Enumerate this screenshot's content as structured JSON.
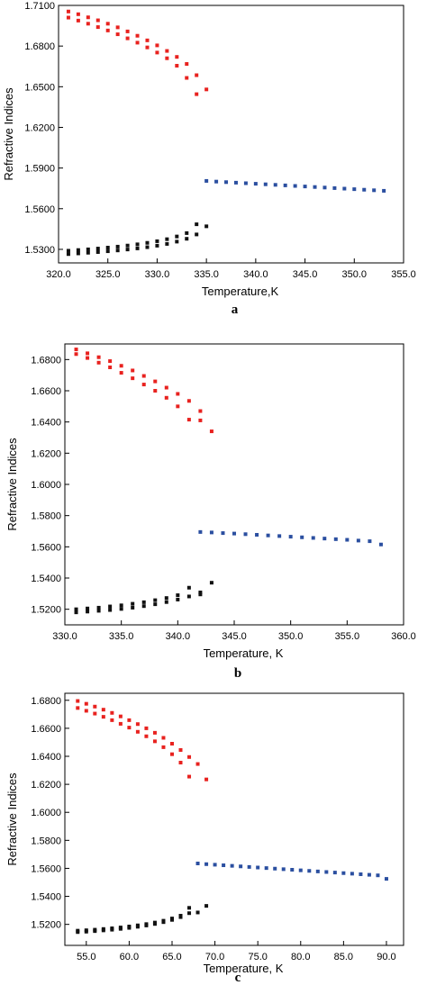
{
  "chart_data": [
    {
      "type": "scatter",
      "panel_label": "a",
      "xlabel": "Temperature,K",
      "ylabel": "Refractive Indices",
      "xlim": [
        320,
        355
      ],
      "ylim": [
        1.52,
        1.71
      ],
      "xticks": [
        320,
        325,
        330,
        335,
        340,
        345,
        350,
        355
      ],
      "xtick_labels": [
        "320.0",
        "325.0",
        "330.0",
        "335.0",
        "340.0",
        "345.0",
        "350.0",
        "355.0"
      ],
      "yticks": [
        1.53,
        1.56,
        1.59,
        1.62,
        1.65,
        1.68,
        1.71
      ],
      "ytick_labels": [
        "1.5300",
        "1.5600",
        "1.5900",
        "1.6200",
        "1.6500",
        "1.6800",
        "1.7100"
      ],
      "series": [
        {
          "color": "#e8221f",
          "x": [
            321.0,
            322.0,
            323.0,
            324.0,
            325.0,
            326.0,
            327.0,
            328.0,
            329.0,
            330.0,
            331.0,
            332.0,
            333.0,
            334.0,
            335.0
          ],
          "y": [
            1.7055,
            1.7035,
            1.7012,
            1.699,
            1.6965,
            1.6938,
            1.6908,
            1.6876,
            1.6842,
            1.6805,
            1.6764,
            1.672,
            1.6668,
            1.6585,
            1.648
          ]
        },
        {
          "color": "#e8221f",
          "x": [
            321.0,
            322.0,
            323.0,
            324.0,
            325.0,
            326.0,
            327.0,
            328.0,
            329.0,
            330.0,
            331.0,
            332.0,
            333.0,
            334.0
          ],
          "y": [
            1.701,
            1.6988,
            1.6965,
            1.694,
            1.6915,
            1.6887,
            1.6857,
            1.6825,
            1.679,
            1.6752,
            1.671,
            1.6655,
            1.6565,
            1.6445
          ]
        },
        {
          "color": "#111111",
          "x": [
            321.0,
            322.0,
            323.0,
            324.0,
            325.0,
            326.0,
            327.0,
            328.0,
            329.0,
            330.0,
            331.0,
            332.0,
            333.0,
            334.0,
            335.0
          ],
          "y": [
            1.529,
            1.5295,
            1.53,
            1.5306,
            1.5313,
            1.532,
            1.5328,
            1.5337,
            1.5348,
            1.536,
            1.5375,
            1.5395,
            1.542,
            1.5485,
            1.547
          ]
        },
        {
          "color": "#111111",
          "x": [
            321.0,
            322.0,
            323.0,
            324.0,
            325.0,
            326.0,
            327.0,
            328.0,
            329.0,
            330.0,
            331.0,
            332.0,
            333.0,
            334.0
          ],
          "y": [
            1.5265,
            1.527,
            1.5275,
            1.528,
            1.5286,
            1.5292,
            1.5299,
            1.5307,
            1.5316,
            1.5327,
            1.534,
            1.5357,
            1.5378,
            1.541
          ]
        },
        {
          "color": "#2b4fa0",
          "x": [
            335.0,
            336.0,
            337.0,
            338.0,
            339.0,
            340.0,
            341.0,
            342.0,
            343.0,
            344.0,
            345.0,
            346.0,
            347.0,
            348.0,
            349.0,
            350.0,
            351.0,
            352.0,
            353.0
          ],
          "y": [
            1.5805,
            1.58,
            1.5796,
            1.5792,
            1.5788,
            1.5784,
            1.578,
            1.5776,
            1.5772,
            1.5768,
            1.5764,
            1.576,
            1.5756,
            1.5752,
            1.5748,
            1.5744,
            1.574,
            1.5736,
            1.5732
          ]
        }
      ]
    },
    {
      "type": "scatter",
      "panel_label": "b",
      "xlabel": "Temperature, K",
      "ylabel": "Refractive Indices",
      "xlim": [
        330,
        360
      ],
      "ylim": [
        1.51,
        1.69
      ],
      "xticks": [
        330,
        335,
        340,
        345,
        350,
        355,
        360
      ],
      "xtick_labels": [
        "330.0",
        "335.0",
        "340.0",
        "345.0",
        "350.0",
        "355.0",
        "360.0"
      ],
      "yticks": [
        1.52,
        1.54,
        1.56,
        1.58,
        1.6,
        1.62,
        1.64,
        1.66,
        1.68
      ],
      "ytick_labels": [
        "1.5200",
        "1.5400",
        "1.5600",
        "1.5800",
        "1.6000",
        "1.6200",
        "1.6400",
        "1.6600",
        "1.6800"
      ],
      "series": [
        {
          "color": "#e8221f",
          "x": [
            331.0,
            332.0,
            333.0,
            334.0,
            335.0,
            336.0,
            337.0,
            338.0,
            339.0,
            340.0,
            341.0,
            342.0,
            343.0
          ],
          "y": [
            1.6865,
            1.684,
            1.6815,
            1.679,
            1.676,
            1.673,
            1.6695,
            1.666,
            1.662,
            1.658,
            1.6535,
            1.647,
            1.634
          ]
        },
        {
          "color": "#e8221f",
          "x": [
            331.0,
            332.0,
            333.0,
            334.0,
            335.0,
            336.0,
            337.0,
            338.0,
            339.0,
            340.0,
            341.0,
            342.0
          ],
          "y": [
            1.6835,
            1.681,
            1.678,
            1.675,
            1.6715,
            1.668,
            1.664,
            1.66,
            1.6555,
            1.65,
            1.6415,
            1.641
          ]
        },
        {
          "color": "#111111",
          "x": [
            331.0,
            332.0,
            333.0,
            334.0,
            335.0,
            336.0,
            337.0,
            338.0,
            339.0,
            340.0,
            341.0,
            342.0,
            343.0
          ],
          "y": [
            1.52,
            1.5205,
            1.521,
            1.5218,
            1.5225,
            1.5235,
            1.5245,
            1.5258,
            1.5272,
            1.529,
            1.5338,
            1.5308,
            1.537
          ]
        },
        {
          "color": "#111111",
          "x": [
            331.0,
            332.0,
            333.0,
            334.0,
            335.0,
            336.0,
            337.0,
            338.0,
            339.0,
            340.0,
            341.0,
            342.0
          ],
          "y": [
            1.518,
            1.5185,
            1.519,
            1.5195,
            1.5202,
            1.521,
            1.522,
            1.5232,
            1.5246,
            1.5262,
            1.5282,
            1.5295
          ]
        },
        {
          "color": "#2b4fa0",
          "x": [
            342.0,
            343.0,
            344.0,
            345.0,
            346.0,
            347.0,
            348.0,
            349.0,
            350.0,
            351.0,
            352.0,
            353.0,
            354.0,
            355.0,
            356.0,
            357.0,
            358.0
          ],
          "y": [
            1.5695,
            1.5692,
            1.5688,
            1.5685,
            1.5681,
            1.5677,
            1.5673,
            1.5669,
            1.5665,
            1.5661,
            1.5657,
            1.5653,
            1.5649,
            1.5645,
            1.564,
            1.5636,
            1.5615
          ]
        }
      ]
    },
    {
      "type": "scatter",
      "panel_label": "c",
      "xlabel": "Temperature, K",
      "ylabel": "Refractive Indices",
      "xlim": [
        52.5,
        92
      ],
      "ylim": [
        1.505,
        1.685
      ],
      "xticks": [
        55,
        60,
        65,
        70,
        75,
        80,
        85,
        90
      ],
      "xtick_labels": [
        "55.0",
        "60.0",
        "65.0",
        "70.0",
        "75.0",
        "80.0",
        "85.0",
        "90.0"
      ],
      "yticks": [
        1.52,
        1.54,
        1.56,
        1.58,
        1.6,
        1.62,
        1.64,
        1.66,
        1.68
      ],
      "ytick_labels": [
        "1.5200",
        "1.5400",
        "1.5600",
        "1.5800",
        "1.6000",
        "1.6200",
        "1.6400",
        "1.6600",
        "1.6800"
      ],
      "series": [
        {
          "color": "#e8221f",
          "x": [
            54.0,
            55.0,
            56.0,
            57.0,
            58.0,
            59.0,
            60.0,
            61.0,
            62.0,
            63.0,
            64.0,
            65.0,
            66.0,
            67.0,
            68.0,
            69.0
          ],
          "y": [
            1.6795,
            1.6775,
            1.6755,
            1.6733,
            1.671,
            1.6685,
            1.6658,
            1.663,
            1.66,
            1.6568,
            1.6532,
            1.649,
            1.6445,
            1.6395,
            1.6345,
            1.6235
          ]
        },
        {
          "color": "#e8221f",
          "x": [
            54.0,
            55.0,
            56.0,
            57.0,
            58.0,
            59.0,
            60.0,
            61.0,
            62.0,
            63.0,
            64.0,
            65.0,
            66.0,
            67.0
          ],
          "y": [
            1.6745,
            1.6725,
            1.6705,
            1.6682,
            1.6658,
            1.6632,
            1.6605,
            1.6575,
            1.6543,
            1.6507,
            1.6465,
            1.6415,
            1.6355,
            1.6255
          ]
        },
        {
          "color": "#111111",
          "x": [
            54.0,
            55.0,
            56.0,
            57.0,
            58.0,
            59.0,
            60.0,
            61.0,
            62.0,
            63.0,
            64.0,
            65.0,
            66.0,
            67.0,
            68.0,
            69.0
          ],
          "y": [
            1.5155,
            1.5158,
            1.5162,
            1.5167,
            1.5172,
            1.5178,
            1.5185,
            1.5193,
            1.5202,
            1.5213,
            1.5226,
            1.5242,
            1.5262,
            1.5318,
            1.5285,
            1.5332
          ]
        },
        {
          "color": "#111111",
          "x": [
            54.0,
            55.0,
            56.0,
            57.0,
            58.0,
            59.0,
            60.0,
            61.0,
            62.0,
            63.0,
            64.0,
            65.0,
            66.0,
            67.0
          ],
          "y": [
            1.5145,
            1.5148,
            1.5152,
            1.5157,
            1.5162,
            1.5168,
            1.5175,
            1.5183,
            1.5192,
            1.5203,
            1.5216,
            1.5232,
            1.5252,
            1.528
          ]
        },
        {
          "color": "#2b4fa0",
          "x": [
            68.0,
            69.0,
            70.0,
            71.0,
            72.0,
            73.0,
            74.0,
            75.0,
            76.0,
            77.0,
            78.0,
            79.0,
            80.0,
            81.0,
            82.0,
            83.0,
            84.0,
            85.0,
            86.0,
            87.0,
            88.0,
            89.0,
            90.0
          ],
          "y": [
            1.5635,
            1.563,
            1.5626,
            1.5622,
            1.5618,
            1.5614,
            1.561,
            1.5606,
            1.5602,
            1.5598,
            1.5594,
            1.559,
            1.5586,
            1.5582,
            1.5578,
            1.5574,
            1.557,
            1.5566,
            1.5562,
            1.5558,
            1.5554,
            1.555,
            1.5525
          ]
        }
      ]
    }
  ]
}
